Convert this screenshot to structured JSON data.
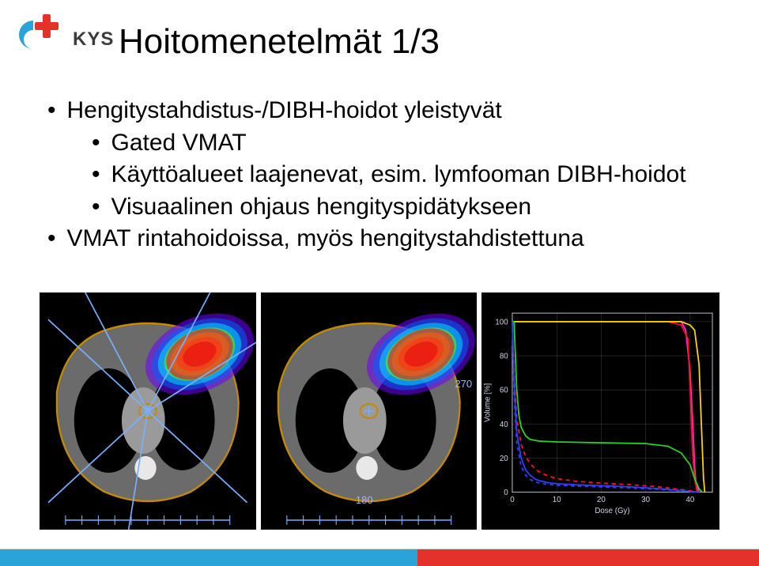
{
  "logo": {
    "text": "KYS",
    "colors": {
      "blue": "#2aa3d9",
      "red": "#e4322b"
    }
  },
  "title": "Hoitomenetelmät 1/3",
  "bullets": [
    {
      "level": 1,
      "text": "Hengitystahdistus-/DIBH-hoidot yleistyvät"
    },
    {
      "level": 2,
      "text": "Gated VMAT"
    },
    {
      "level": 2,
      "text": "Käyttöalueet laajenevat, esim. lymfooman DIBH-hoidot"
    },
    {
      "level": 2,
      "text": "Visuaalinen ohjaus hengityspidätykseen"
    },
    {
      "level": 1,
      "text": "VMAT rintahoidoissa, myös hengitystahdistettuna"
    }
  ],
  "ct": {
    "axis_color": "#9bb8ff",
    "tick_labels": [
      "270",
      "180"
    ],
    "rainbow": [
      "#d40000",
      "#ff6a00",
      "#ffd400",
      "#5cff00",
      "#00e0ff",
      "#0060ff",
      "#7000ff"
    ],
    "ptv_fill": "#ff001b",
    "ptv_opacity": 0.55,
    "skin_stroke": "#c48a00",
    "small_roi_stroke": "#c48a00"
  },
  "dvh": {
    "background": "#000000",
    "grid_color": "#cfd6e6",
    "axis_color": "#cfd6e6",
    "text_color": "#cfd6e6",
    "font_size": 11,
    "xlabel": "Dose (Gy)",
    "ylabel": "Volume [%]",
    "xlim": [
      0,
      45
    ],
    "ylim": [
      0,
      105
    ],
    "xticks": [
      0,
      10,
      20,
      30,
      40
    ],
    "yticks": [
      0,
      20,
      40,
      60,
      80,
      100
    ],
    "curves": [
      {
        "color": "#ff2ad4",
        "dash": "",
        "width": 2.0,
        "points": [
          [
            0,
            100
          ],
          [
            2,
            100
          ],
          [
            5,
            100
          ],
          [
            10,
            100
          ],
          [
            20,
            100
          ],
          [
            30,
            100
          ],
          [
            35,
            100
          ],
          [
            38,
            100
          ],
          [
            39,
            95
          ],
          [
            40,
            70
          ],
          [
            40.6,
            40
          ],
          [
            41,
            15
          ],
          [
            41.3,
            5
          ],
          [
            42,
            0
          ]
        ]
      },
      {
        "color": "#ff1020",
        "dash": "",
        "width": 2.0,
        "points": [
          [
            0,
            100
          ],
          [
            2,
            100
          ],
          [
            5,
            100
          ],
          [
            10,
            100
          ],
          [
            20,
            100
          ],
          [
            30,
            100
          ],
          [
            35,
            100
          ],
          [
            38,
            98
          ],
          [
            39.5,
            90
          ],
          [
            40,
            60
          ],
          [
            40.5,
            25
          ],
          [
            41,
            8
          ],
          [
            41.5,
            1
          ],
          [
            42,
            0
          ]
        ]
      },
      {
        "color": "#ffd400",
        "dash": "",
        "width": 2.0,
        "points": [
          [
            0,
            100
          ],
          [
            2,
            100
          ],
          [
            5,
            100
          ],
          [
            10,
            100
          ],
          [
            20,
            100
          ],
          [
            30,
            100
          ],
          [
            35,
            100
          ],
          [
            38,
            100
          ],
          [
            40,
            98
          ],
          [
            41,
            95
          ],
          [
            42,
            75
          ],
          [
            42.6,
            35
          ],
          [
            43,
            8
          ],
          [
            43.3,
            0
          ]
        ]
      },
      {
        "color": "#23d923",
        "dash": "",
        "width": 2.0,
        "points": [
          [
            0,
            100
          ],
          [
            0.4,
            100
          ],
          [
            1,
            60
          ],
          [
            1.5,
            45
          ],
          [
            2,
            38
          ],
          [
            3,
            33
          ],
          [
            4,
            31
          ],
          [
            6,
            30
          ],
          [
            10,
            29.5
          ],
          [
            20,
            29
          ],
          [
            30,
            28.5
          ],
          [
            35,
            27
          ],
          [
            38,
            23
          ],
          [
            40,
            16
          ],
          [
            41,
            8
          ],
          [
            42,
            2
          ],
          [
            42.7,
            0
          ]
        ]
      },
      {
        "color": "#ff1020",
        "dash": "6 5",
        "width": 2.0,
        "points": [
          [
            0,
            100
          ],
          [
            0.4,
            70
          ],
          [
            1,
            43
          ],
          [
            2,
            28
          ],
          [
            3,
            21
          ],
          [
            4,
            17
          ],
          [
            5,
            14
          ],
          [
            6,
            12
          ],
          [
            8,
            9.5
          ],
          [
            10,
            8
          ],
          [
            14,
            6.5
          ],
          [
            20,
            5.3
          ],
          [
            26,
            4.5
          ],
          [
            32,
            3.4
          ],
          [
            36,
            2.2
          ],
          [
            40,
            0.8
          ],
          [
            42,
            0
          ]
        ]
      },
      {
        "color": "#3040ff",
        "dash": "",
        "width": 2.0,
        "points": [
          [
            0,
            100
          ],
          [
            0.4,
            65
          ],
          [
            1,
            35
          ],
          [
            2,
            20
          ],
          [
            3,
            13
          ],
          [
            4,
            10
          ],
          [
            5,
            8
          ],
          [
            6,
            6.8
          ],
          [
            8,
            5.6
          ],
          [
            10,
            5
          ],
          [
            14,
            4.4
          ],
          [
            20,
            3.8
          ],
          [
            26,
            3.2
          ],
          [
            32,
            2.3
          ],
          [
            36,
            1.4
          ],
          [
            40,
            0.5
          ],
          [
            42,
            0
          ]
        ]
      },
      {
        "color": "#3040ff",
        "dash": "5 5",
        "width": 2.0,
        "points": [
          [
            0,
            100
          ],
          [
            0.4,
            58
          ],
          [
            1,
            29
          ],
          [
            2,
            15
          ],
          [
            3,
            10
          ],
          [
            4,
            7.5
          ],
          [
            5,
            6.2
          ],
          [
            6,
            5.4
          ],
          [
            8,
            4.6
          ],
          [
            10,
            4.1
          ],
          [
            14,
            3.6
          ],
          [
            20,
            3.1
          ],
          [
            26,
            2.5
          ],
          [
            32,
            1.8
          ],
          [
            36,
            1.1
          ],
          [
            40,
            0.3
          ],
          [
            42,
            0
          ]
        ]
      }
    ]
  },
  "footer": {
    "left_color": "#2aa3d9",
    "right_color": "#e4322b"
  }
}
